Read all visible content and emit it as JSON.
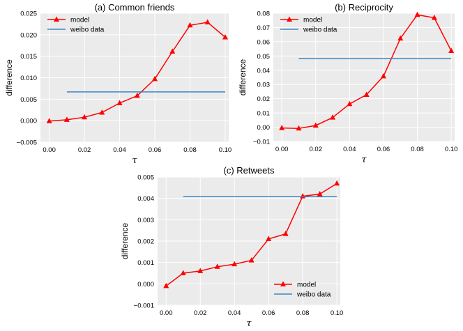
{
  "chart_data": [
    {
      "type": "line",
      "title": "(a) Common friends",
      "xlabel": "τ",
      "ylabel": "difference",
      "xlim": [
        -0.005,
        0.102
      ],
      "ylim": [
        -0.005,
        0.025
      ],
      "x_ticks": [
        0.0,
        0.02,
        0.04,
        0.06,
        0.08,
        0.1
      ],
      "x_tick_labels": [
        "0.00",
        "0.02",
        "0.04",
        "0.06",
        "0.08",
        "0.10"
      ],
      "y_ticks": [
        -0.005,
        0.0,
        0.005,
        0.01,
        0.015,
        0.02,
        0.025
      ],
      "y_tick_labels": [
        "−0.005",
        "0.000",
        "0.005",
        "0.010",
        "0.015",
        "0.020",
        "0.025"
      ],
      "grid": true,
      "legend_position": "top-left",
      "series": [
        {
          "name": "model",
          "color": "#ff0000",
          "marker": "triangle",
          "x": [
            0.0,
            0.01,
            0.02,
            0.03,
            0.04,
            0.05,
            0.06,
            0.07,
            0.08,
            0.09,
            0.1
          ],
          "y": [
            -0.0001,
            0.0002,
            0.0008,
            0.0019,
            0.0041,
            0.0058,
            0.0097,
            0.0161,
            0.0222,
            0.0229,
            0.0194
          ]
        },
        {
          "name": "weibo data",
          "color": "#3a87c8",
          "marker": "none",
          "x": [
            0.01,
            0.1
          ],
          "y": [
            0.0067,
            0.0067
          ]
        }
      ]
    },
    {
      "type": "line",
      "title": "(b) Reciprocity",
      "xlabel": "τ",
      "ylabel": "difference",
      "xlim": [
        -0.005,
        0.102
      ],
      "ylim": [
        -0.01,
        0.08
      ],
      "x_ticks": [
        0.0,
        0.02,
        0.04,
        0.06,
        0.08,
        0.1
      ],
      "x_tick_labels": [
        "0.00",
        "0.02",
        "0.04",
        "0.06",
        "0.08",
        "0.10"
      ],
      "y_ticks": [
        -0.01,
        0.0,
        0.01,
        0.02,
        0.03,
        0.04,
        0.05,
        0.06,
        0.07,
        0.08
      ],
      "y_tick_labels": [
        "−0.01",
        "0.00",
        "0.01",
        "0.02",
        "0.03",
        "0.04",
        "0.05",
        "0.06",
        "0.07",
        "0.08"
      ],
      "grid": true,
      "legend_position": "top-left",
      "series": [
        {
          "name": "model",
          "color": "#ff0000",
          "marker": "triangle",
          "x": [
            0.0,
            0.01,
            0.02,
            0.03,
            0.04,
            0.05,
            0.06,
            0.07,
            0.08,
            0.09,
            0.1
          ],
          "y": [
            -0.0005,
            -0.0008,
            0.0012,
            0.0068,
            0.0163,
            0.0228,
            0.0358,
            0.0623,
            0.0789,
            0.0768,
            0.0536
          ]
        },
        {
          "name": "weibo data",
          "color": "#3a87c8",
          "marker": "none",
          "x": [
            0.01,
            0.1
          ],
          "y": [
            0.0482,
            0.0482
          ]
        }
      ]
    },
    {
      "type": "line",
      "title": "(c) Retweets",
      "xlabel": "τ",
      "ylabel": "difference",
      "xlim": [
        -0.005,
        0.102
      ],
      "ylim": [
        -0.001,
        0.005
      ],
      "x_ticks": [
        0.0,
        0.02,
        0.04,
        0.06,
        0.08,
        0.1
      ],
      "x_tick_labels": [
        "0.00",
        "0.02",
        "0.04",
        "0.06",
        "0.08",
        "0.10"
      ],
      "y_ticks": [
        -0.001,
        0.0,
        0.001,
        0.002,
        0.003,
        0.004,
        0.005
      ],
      "y_tick_labels": [
        "−0.001",
        "0.000",
        "0.001",
        "0.002",
        "0.003",
        "0.004",
        "0.005"
      ],
      "grid": true,
      "legend_position": "bottom-right",
      "series": [
        {
          "name": "model",
          "color": "#ff0000",
          "marker": "triangle",
          "x": [
            0.0,
            0.01,
            0.02,
            0.03,
            0.04,
            0.05,
            0.06,
            0.07,
            0.08,
            0.09,
            0.1
          ],
          "y": [
            -0.0001,
            0.0005,
            0.0006,
            0.0008,
            0.00092,
            0.0011,
            0.0021,
            0.00234,
            0.0041,
            0.0042,
            0.0047
          ]
        },
        {
          "name": "weibo data",
          "color": "#3a87c8",
          "marker": "none",
          "x": [
            0.01,
            0.1
          ],
          "y": [
            0.00408,
            0.00408
          ]
        }
      ]
    }
  ],
  "colors": {
    "plot_background": "#ebebeb",
    "grid": "#ffffff"
  }
}
